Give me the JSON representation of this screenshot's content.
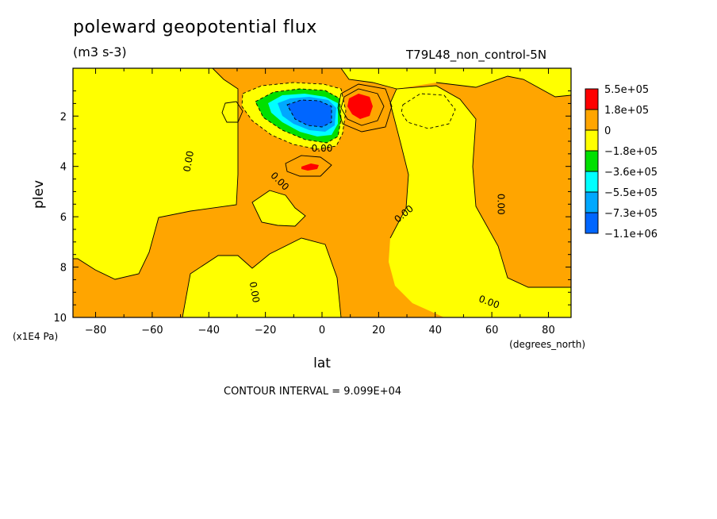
{
  "chart_data": {
    "type": "heatmap",
    "title": "poleward geopotential flux",
    "units": "(m3 s-3)",
    "run_label": "T79L48_non_control-5N",
    "xlabel": "lat",
    "x_unit": "(degrees_north)",
    "ylabel": "plev",
    "y_unit": "(x1E4 Pa)",
    "xlim": [
      -88,
      88
    ],
    "ylim": [
      10,
      0.1
    ],
    "x_ticks": [
      -80,
      -60,
      -40,
      -20,
      0,
      20,
      40,
      60,
      80
    ],
    "y_ticks": [
      2,
      4,
      6,
      8,
      10
    ],
    "contour_interval_text": "CONTOUR INTERVAL = 9.099E+04",
    "legend": [
      {
        "label": "5.5e+05",
        "color": "#ff0000"
      },
      {
        "label": "1.8e+05",
        "color": "#ffa500"
      },
      {
        "label": "0",
        "color": "#ffff00"
      },
      {
        "label": "−1.8e+05",
        "color": "#00e000"
      },
      {
        "label": "−3.6e+05",
        "color": "#00ffff"
      },
      {
        "label": "−5.5e+05",
        "color": "#00a8ff"
      },
      {
        "label": "−7.3e+05",
        "color": "#0066ff"
      },
      {
        "label": "−1.1e+06",
        "color": ""
      }
    ],
    "contour_labels": [
      {
        "text": "0.00",
        "lat": -47,
        "plev": 3.8,
        "angle": -80
      },
      {
        "text": "0.00",
        "lat": -15,
        "plev": 4.6,
        "angle": 45
      },
      {
        "text": "0.00",
        "lat": 0,
        "plev": 3.3,
        "angle": 0
      },
      {
        "text": "0.00",
        "lat": 29,
        "plev": 5.9,
        "angle": -40
      },
      {
        "text": "0.00",
        "lat": 63,
        "plev": 5.5,
        "angle": 90
      },
      {
        "text": "0.00",
        "lat": -24,
        "plev": 9.0,
        "angle": 80
      },
      {
        "text": "0.00",
        "lat": 59,
        "plev": 9.4,
        "angle": 20
      }
    ]
  }
}
